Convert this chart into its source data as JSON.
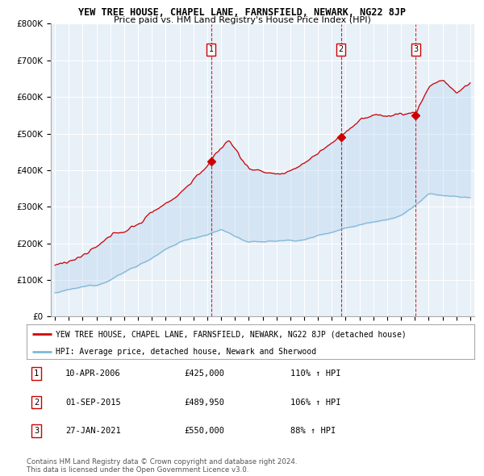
{
  "title": "YEW TREE HOUSE, CHAPEL LANE, FARNSFIELD, NEWARK, NG22 8JP",
  "subtitle": "Price paid vs. HM Land Registry's House Price Index (HPI)",
  "hpi_label": "HPI: Average price, detached house, Newark and Sherwood",
  "property_label": "YEW TREE HOUSE, CHAPEL LANE, FARNSFIELD, NEWARK, NG22 8JP (detached house)",
  "sales": [
    {
      "num": 1,
      "date": "10-APR-2006",
      "price": 425000,
      "hpi_pct": "110% ↑ HPI",
      "x_year": 2006.28,
      "y_val": 425000
    },
    {
      "num": 2,
      "date": "01-SEP-2015",
      "price": 489950,
      "hpi_pct": "106% ↑ HPI",
      "x_year": 2015.67,
      "y_val": 489950
    },
    {
      "num": 3,
      "date": "27-JAN-2021",
      "price": 550000,
      "hpi_pct": "88% ↑ HPI",
      "x_year": 2021.07,
      "y_val": 550000
    }
  ],
  "ylim": [
    0,
    800000
  ],
  "xlim_start": 1994.7,
  "xlim_end": 2025.3,
  "hpi_color": "#7fb8d8",
  "property_color": "#cc0000",
  "fill_color": "#ddeeff",
  "background_color": "#ffffff",
  "grid_color": "#cccccc",
  "footer": "Contains HM Land Registry data © Crown copyright and database right 2024.\nThis data is licensed under the Open Government Licence v3.0."
}
